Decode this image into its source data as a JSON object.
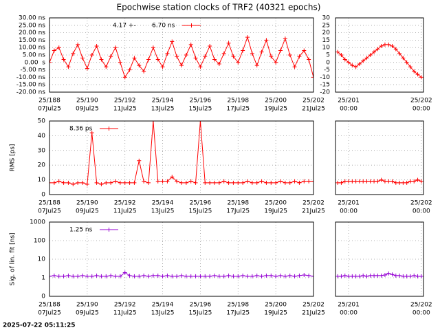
{
  "title": "Epochwise station clocks of TRF2 (40321 epochs)",
  "timestamp": "2025-07-22 05:11:25",
  "chart_data": [
    {
      "type": "line",
      "legend": true,
      "legend_text": "4.17 +-",
      "x": [
        188,
        188.25,
        188.5,
        188.75,
        189,
        189.25,
        189.5,
        189.75,
        190,
        190.25,
        190.5,
        190.75,
        191,
        191.25,
        191.5,
        191.75,
        192,
        192.25,
        192.5,
        192.75,
        193,
        193.25,
        193.5,
        193.75,
        194,
        194.25,
        194.5,
        194.75,
        195,
        195.25,
        195.5,
        195.75,
        196,
        196.25,
        196.5,
        196.75,
        197,
        197.25,
        197.5,
        197.75,
        198,
        198.25,
        198.5,
        198.75,
        199,
        199.25,
        199.5,
        199.75,
        200,
        200.25,
        200.5,
        200.75,
        201,
        201.25,
        201.5,
        201.75,
        202
      ],
      "series": [
        {
          "name": "6.70 ns",
          "color": "#ff0000",
          "values": [
            0,
            8,
            10,
            2,
            -3,
            6,
            12,
            3,
            -4,
            5,
            11,
            2,
            -3,
            4,
            10,
            0,
            -10,
            -5,
            3,
            -2,
            -6,
            2,
            10,
            2,
            -3,
            6,
            14,
            4,
            -2,
            5,
            12,
            3,
            -3,
            4,
            11,
            2,
            -1,
            6,
            13,
            4,
            0,
            8,
            17,
            6,
            -2,
            7,
            15,
            4,
            0,
            8,
            16,
            5,
            -3,
            4,
            8,
            2,
            -10
          ]
        }
      ],
      "xlim": [
        188,
        202
      ],
      "xticks": [
        {
          "value": 188,
          "label": "25/188"
        },
        {
          "value": 190,
          "label": "25/190"
        },
        {
          "value": 192,
          "label": "25/192"
        },
        {
          "value": 194,
          "label": "25/194"
        },
        {
          "value": 196,
          "label": "25/196"
        },
        {
          "value": 198,
          "label": "25/198"
        },
        {
          "value": 200,
          "label": "25/200"
        },
        {
          "value": 202,
          "label": "25/202"
        }
      ],
      "xtick_sublabels": [
        "07Jul25",
        "09Jul25",
        "11Jul25",
        "13Jul25",
        "15Jul25",
        "17Jul25",
        "19Jul25",
        "21Jul25"
      ],
      "ylim": [
        -20,
        30
      ],
      "yticks": [
        {
          "value": -20,
          "label": "-20.00 ns"
        },
        {
          "value": -15,
          "label": "-15.00 ns"
        },
        {
          "value": -10,
          "label": "-10.00 ns"
        },
        {
          "value": -5,
          "label": "-5.00 ns"
        },
        {
          "value": 0,
          "label": "0.00  s"
        },
        {
          "value": 5,
          "label": "5.00 ns"
        },
        {
          "value": 10,
          "label": "10.00 ns"
        },
        {
          "value": 15,
          "label": "15.00 ns"
        },
        {
          "value": 20,
          "label": "20.00 ns"
        },
        {
          "value": 25,
          "label": "25.00 ns"
        },
        {
          "value": 30,
          "label": "30.00 ns"
        }
      ],
      "ytick_labels": true,
      "grid": true,
      "log_y": false
    },
    {
      "type": "line",
      "legend": false,
      "x": [
        200.85,
        200.9,
        200.95,
        201,
        201.05,
        201.1,
        201.15,
        201.2,
        201.25,
        201.3,
        201.35,
        201.4,
        201.45,
        201.5,
        201.55,
        201.6,
        201.65,
        201.7,
        201.75,
        201.8,
        201.85,
        201.9,
        201.95,
        202
      ],
      "series": [
        {
          "color": "#ff0000",
          "values": [
            7,
            5,
            2,
            0,
            -2,
            -3,
            -1,
            1,
            3,
            5,
            7,
            9,
            11,
            12,
            12,
            11,
            9,
            6,
            3,
            0,
            -3,
            -6,
            -8,
            -10
          ]
        }
      ],
      "xlim": [
        200.82,
        202.03
      ],
      "xticks": [
        {
          "value": 201,
          "label": "25/201"
        },
        {
          "value": 202,
          "label": "25/202"
        }
      ],
      "xtick_sublabels": [
        "00:00",
        "00:00"
      ],
      "ylim": [
        -20,
        30
      ],
      "yticks": [
        -20,
        -15,
        -10,
        -5,
        0,
        5,
        10,
        15,
        20,
        25,
        30
      ],
      "ytick_labels": true,
      "grid": true,
      "log_y": false
    },
    {
      "type": "line",
      "legend": true,
      "ylabel": "RMS [ps]",
      "x": [
        188,
        188.25,
        188.5,
        188.75,
        189,
        189.25,
        189.5,
        189.75,
        190,
        190.25,
        190.5,
        190.75,
        191,
        191.25,
        191.5,
        191.75,
        192,
        192.25,
        192.5,
        192.75,
        193,
        193.25,
        193.5,
        193.75,
        194,
        194.25,
        194.5,
        194.75,
        195,
        195.25,
        195.5,
        195.75,
        196,
        196.25,
        196.5,
        196.75,
        197,
        197.25,
        197.5,
        197.75,
        198,
        198.25,
        198.5,
        198.75,
        199,
        199.25,
        199.5,
        199.75,
        200,
        200.25,
        200.5,
        200.75,
        201,
        201.25,
        201.5,
        201.75,
        202
      ],
      "series": [
        {
          "name": "8.36 ps",
          "color": "#ff0000",
          "values": [
            8,
            8,
            9,
            8,
            8,
            7,
            8,
            8,
            7,
            42,
            8,
            7,
            8,
            8,
            9,
            8,
            8,
            8,
            8,
            23,
            9,
            8,
            50,
            9,
            9,
            9,
            12,
            9,
            8,
            8,
            9,
            8,
            50,
            8,
            8,
            8,
            8,
            9,
            8,
            8,
            8,
            8,
            9,
            8,
            8,
            9,
            8,
            8,
            8,
            9,
            8,
            8,
            9,
            8,
            9,
            9,
            9
          ]
        }
      ],
      "xlim": [
        188,
        202
      ],
      "xticks": [
        {
          "value": 188,
          "label": "25/188"
        },
        {
          "value": 190,
          "label": "25/190"
        },
        {
          "value": 192,
          "label": "25/192"
        },
        {
          "value": 194,
          "label": "25/194"
        },
        {
          "value": 196,
          "label": "25/196"
        },
        {
          "value": 198,
          "label": "25/198"
        },
        {
          "value": 200,
          "label": "25/200"
        },
        {
          "value": 202,
          "label": "25/202"
        }
      ],
      "xtick_sublabels": [
        "07Jul25",
        "09Jul25",
        "11Jul25",
        "13Jul25",
        "15Jul25",
        "17Jul25",
        "19Jul25",
        "21Jul25"
      ],
      "ylim": [
        0,
        50
      ],
      "yticks": [
        0,
        10,
        20,
        30,
        40,
        50
      ],
      "ytick_labels": true,
      "grid": true,
      "log_y": false
    },
    {
      "type": "line",
      "legend": false,
      "x": [
        200.85,
        200.9,
        200.95,
        201,
        201.05,
        201.1,
        201.15,
        201.2,
        201.25,
        201.3,
        201.35,
        201.4,
        201.45,
        201.5,
        201.55,
        201.6,
        201.65,
        201.7,
        201.75,
        201.8,
        201.85,
        201.9,
        201.95,
        202
      ],
      "series": [
        {
          "color": "#ff0000",
          "values": [
            8,
            8,
            9,
            9,
            9,
            9,
            9,
            9,
            9,
            9,
            9,
            9,
            10,
            9,
            9,
            9,
            8,
            8,
            8,
            8,
            9,
            9,
            10,
            9
          ]
        }
      ],
      "xlim": [
        200.82,
        202.03
      ],
      "xticks": [
        {
          "value": 201,
          "label": "25/201"
        },
        {
          "value": 202,
          "label": "25/202"
        }
      ],
      "xtick_sublabels": [
        "00:00",
        "00:00"
      ],
      "ylim": [
        0,
        50
      ],
      "yticks": [
        0,
        10,
        20,
        30,
        40,
        50
      ],
      "ytick_labels": false,
      "grid": true,
      "log_y": false
    },
    {
      "type": "line",
      "legend": true,
      "ylabel": "Sig. of lin. fit [ns]",
      "x": [
        188,
        188.25,
        188.5,
        188.75,
        189,
        189.25,
        189.5,
        189.75,
        190,
        190.25,
        190.5,
        190.75,
        191,
        191.25,
        191.5,
        191.75,
        192,
        192.25,
        192.5,
        192.75,
        193,
        193.25,
        193.5,
        193.75,
        194,
        194.25,
        194.5,
        194.75,
        195,
        195.25,
        195.5,
        195.75,
        196,
        196.25,
        196.5,
        196.75,
        197,
        197.25,
        197.5,
        197.75,
        198,
        198.25,
        198.5,
        198.75,
        199,
        199.25,
        199.5,
        199.75,
        200,
        200.25,
        200.5,
        200.75,
        201,
        201.25,
        201.5,
        201.75,
        202
      ],
      "series": [
        {
          "name": "1.25 ns",
          "color": "#9400d3",
          "values": [
            1.2,
            1.3,
            1.2,
            1.2,
            1.3,
            1.2,
            1.2,
            1.3,
            1.2,
            1.2,
            1.3,
            1.2,
            1.2,
            1.3,
            1.2,
            1.2,
            1.9,
            1.3,
            1.2,
            1.2,
            1.3,
            1.2,
            1.3,
            1.3,
            1.2,
            1.3,
            1.2,
            1.2,
            1.3,
            1.2,
            1.2,
            1.2,
            1.2,
            1.2,
            1.2,
            1.3,
            1.2,
            1.2,
            1.3,
            1.2,
            1.2,
            1.3,
            1.2,
            1.2,
            1.3,
            1.2,
            1.3,
            1.3,
            1.2,
            1.3,
            1.2,
            1.3,
            1.2,
            1.3,
            1.4,
            1.3,
            1.2
          ]
        }
      ],
      "xlim": [
        188,
        202
      ],
      "xticks": [
        {
          "value": 188,
          "label": "25/188"
        },
        {
          "value": 190,
          "label": "25/190"
        },
        {
          "value": 192,
          "label": "25/192"
        },
        {
          "value": 194,
          "label": "25/194"
        },
        {
          "value": 196,
          "label": "25/196"
        },
        {
          "value": 198,
          "label": "25/198"
        },
        {
          "value": 200,
          "label": "25/200"
        },
        {
          "value": 202,
          "label": "25/202"
        }
      ],
      "xtick_sublabels": [
        "07Jul25",
        "09Jul25",
        "11Jul25",
        "13Jul25",
        "15Jul25",
        "17Jul25",
        "19Jul25",
        "21Jul25"
      ],
      "ylim": [
        0.1,
        1000
      ],
      "yticks": [
        {
          "value": 0.1,
          "label": "0"
        },
        1,
        10,
        100,
        1000
      ],
      "ytick_labels": true,
      "grid": true,
      "log_y": true
    },
    {
      "type": "line",
      "legend": false,
      "x": [
        200.85,
        200.9,
        200.95,
        201,
        201.05,
        201.1,
        201.15,
        201.2,
        201.25,
        201.3,
        201.35,
        201.4,
        201.45,
        201.5,
        201.55,
        201.6,
        201.65,
        201.7,
        201.75,
        201.8,
        201.85,
        201.9,
        201.95,
        202
      ],
      "series": [
        {
          "color": "#9400d3",
          "values": [
            1.2,
            1.2,
            1.3,
            1.2,
            1.2,
            1.2,
            1.2,
            1.3,
            1.2,
            1.3,
            1.3,
            1.3,
            1.3,
            1.4,
            1.7,
            1.5,
            1.3,
            1.3,
            1.2,
            1.2,
            1.2,
            1.3,
            1.2,
            1.2
          ]
        }
      ],
      "xlim": [
        200.82,
        202.03
      ],
      "xticks": [
        {
          "value": 201,
          "label": "25/201"
        },
        {
          "value": 202,
          "label": "25/202"
        }
      ],
      "xtick_sublabels": [
        "00:00",
        "00:00"
      ],
      "ylim": [
        0.1,
        1000
      ],
      "yticks": [
        0.1,
        1,
        10,
        100,
        1000
      ],
      "ytick_labels": false,
      "grid": true,
      "log_y": true
    }
  ]
}
